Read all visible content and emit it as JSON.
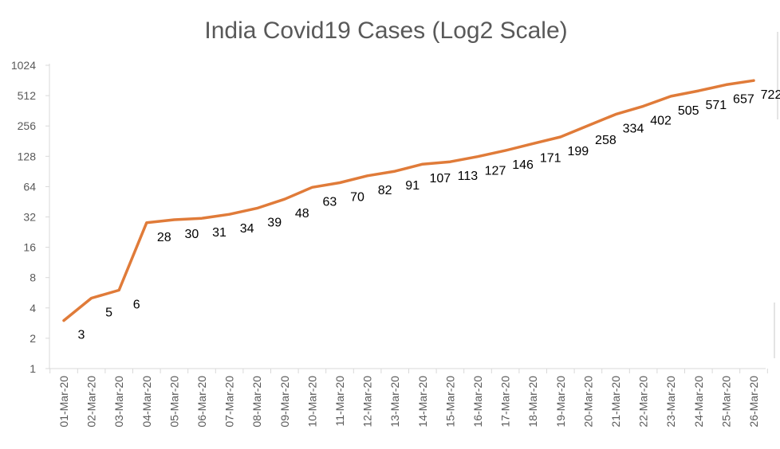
{
  "chart_data": {
    "type": "line",
    "title": "India Covid19 Cases (Log2 Scale)",
    "xlabel": "",
    "ylabel": "",
    "y_scale": "log2",
    "ylim": [
      1,
      1024
    ],
    "y_ticks": [
      "1",
      "2",
      "4",
      "8",
      "16",
      "32",
      "64",
      "128",
      "256",
      "512",
      "1024"
    ],
    "grid": false,
    "legend": "none",
    "categories": [
      "01-Mar-20",
      "02-Mar-20",
      "03-Mar-20",
      "04-Mar-20",
      "05-Mar-20",
      "06-Mar-20",
      "07-Mar-20",
      "08-Mar-20",
      "09-Mar-20",
      "10-Mar-20",
      "11-Mar-20",
      "12-Mar-20",
      "13-Mar-20",
      "14-Mar-20",
      "15-Mar-20",
      "16-Mar-20",
      "17-Mar-20",
      "18-Mar-20",
      "19-Mar-20",
      "20-Mar-20",
      "21-Mar-20",
      "22-Mar-20",
      "23-Mar-20",
      "24-Mar-20",
      "25-Mar-20",
      "26-Mar-20"
    ],
    "series": [
      {
        "name": "Cases",
        "color": "#e07b39",
        "values": [
          3,
          5,
          6,
          28,
          30,
          31,
          34,
          39,
          48,
          63,
          70,
          82,
          91,
          107,
          113,
          127,
          146,
          171,
          199,
          258,
          334,
          402,
          505,
          571,
          657,
          722
        ],
        "data_labels": [
          "3",
          "5",
          "6",
          "28",
          "30",
          "31",
          "34",
          "39",
          "48",
          "63",
          "70",
          "82",
          "91",
          "107",
          "113",
          "127",
          "146",
          "171",
          "199",
          "258",
          "334",
          "402",
          "505",
          "571",
          "657",
          "722"
        ]
      }
    ]
  }
}
